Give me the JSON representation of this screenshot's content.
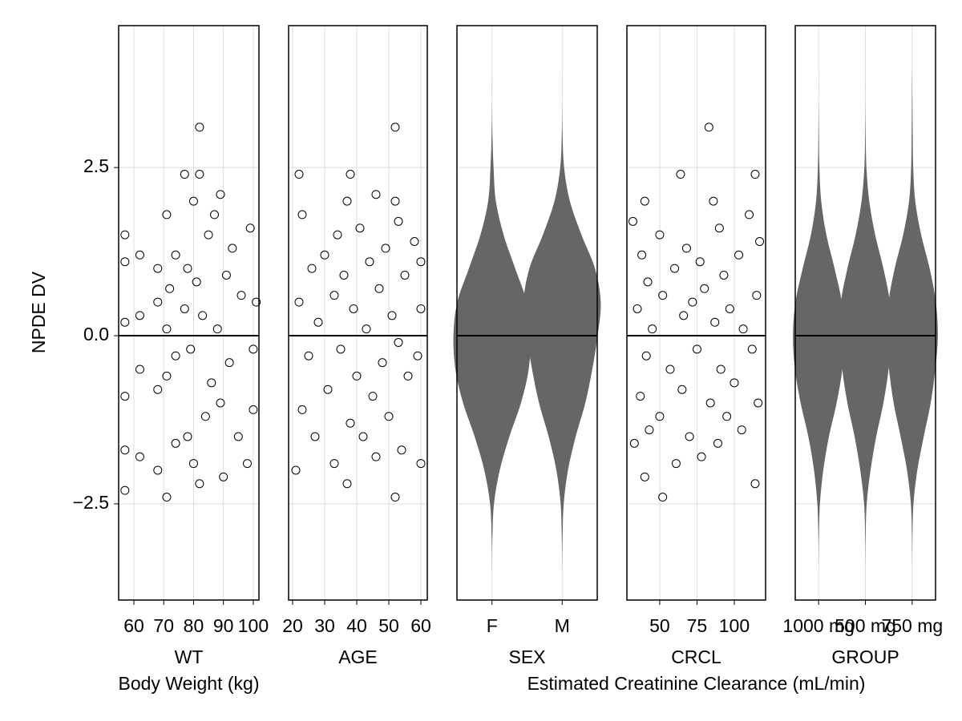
{
  "chart_data": [
    {
      "type": "scatter",
      "xlabel": "WT",
      "xsublabel": "Body Weight (kg)",
      "ylabel": "NPDE DV",
      "xlim": [
        54.9,
        101.9
      ],
      "xticks": [
        60,
        70,
        80,
        90,
        100
      ],
      "ylim": [
        -3.93,
        4.61
      ],
      "yticks": [
        {
          "value": -2.5,
          "label": "−2.5"
        },
        {
          "value": 0,
          "label": "0.0"
        },
        2.5
      ],
      "hline": 0,
      "grid": true,
      "color": "#000000",
      "x": [
        57,
        57,
        57,
        57,
        57,
        57,
        62,
        62,
        62,
        62,
        68,
        68,
        68,
        68,
        71,
        71,
        71,
        71,
        72,
        74,
        74,
        74,
        77,
        77,
        78,
        78,
        79,
        80,
        80,
        81,
        82,
        82,
        82,
        83,
        84,
        85,
        86,
        87,
        88,
        89,
        89,
        90,
        91,
        92,
        93,
        95,
        96,
        98,
        99,
        100,
        101,
        100
      ],
      "values": [
        1.5,
        -2.3,
        0.2,
        -0.9,
        1.1,
        -1.7,
        1.2,
        -0.5,
        0.3,
        -1.8,
        0.5,
        -0.8,
        -2.0,
        1.0,
        -2.4,
        1.8,
        0.1,
        -0.6,
        0.7,
        -1.6,
        1.2,
        -0.3,
        2.4,
        0.4,
        -1.5,
        1.0,
        -0.2,
        2.0,
        -1.9,
        0.8,
        3.1,
        -2.2,
        2.4,
        0.3,
        -1.2,
        1.5,
        -0.7,
        1.8,
        0.1,
        2.1,
        -1.0,
        -2.1,
        0.9,
        -0.4,
        1.3,
        -1.5,
        0.6,
        -1.9,
        1.6,
        -0.2,
        0.5,
        -1.1
      ]
    },
    {
      "type": "scatter",
      "xlabel": "AGE",
      "xlim": [
        18.75,
        62
      ],
      "xticks": [
        20,
        30,
        40,
        50,
        60
      ],
      "ylim": [
        -3.93,
        4.61
      ],
      "hline": 0,
      "grid": true,
      "color": "#000000",
      "x": [
        21,
        22,
        22,
        23,
        23,
        25,
        26,
        27,
        28,
        30,
        31,
        33,
        33,
        34,
        35,
        36,
        37,
        37,
        38,
        38,
        39,
        40,
        41,
        42,
        43,
        44,
        45,
        46,
        46,
        47,
        48,
        49,
        50,
        51,
        52,
        52,
        52,
        53,
        53,
        54,
        55,
        56,
        58,
        60,
        60,
        60,
        59
      ],
      "values": [
        -2.0,
        2.4,
        0.5,
        -1.1,
        1.8,
        -0.3,
        1.0,
        -1.5,
        0.2,
        1.2,
        -0.8,
        0.6,
        -1.9,
        1.5,
        -0.2,
        0.9,
        -2.2,
        2.0,
        2.4,
        -1.3,
        0.4,
        -0.6,
        1.6,
        -1.5,
        0.1,
        1.1,
        -0.9,
        2.1,
        -1.8,
        0.7,
        -0.4,
        1.3,
        -1.2,
        0.3,
        3.1,
        -2.4,
        2.0,
        -0.1,
        1.7,
        -1.7,
        0.9,
        -0.6,
        1.4,
        -1.9,
        0.4,
        1.1,
        -0.3
      ]
    },
    {
      "type": "violin",
      "xlabel": "SEX",
      "categories": [
        "F",
        "M"
      ],
      "ylim": [
        -3.93,
        4.61
      ],
      "hline": 0,
      "grid": true,
      "color": "#666666",
      "density_y": [
        -3.5,
        -3,
        -2.5,
        -2,
        -1.5,
        -1,
        -0.5,
        0,
        0.5,
        1,
        1.5,
        2,
        2.5,
        3,
        3.5,
        4
      ],
      "densities": [
        [
          0,
          0.01,
          0.05,
          0.2,
          0.45,
          0.75,
          0.95,
          1,
          0.9,
          0.6,
          0.3,
          0.1,
          0.04,
          0.01,
          0,
          0
        ],
        [
          0,
          0.01,
          0.04,
          0.15,
          0.35,
          0.6,
          0.78,
          0.92,
          1,
          0.85,
          0.5,
          0.2,
          0.05,
          0.01,
          0,
          0
        ]
      ]
    },
    {
      "type": "scatter",
      "xlabel": "CRCL",
      "xsublabel": "Estimated Creatinine Clearance (mL/min)",
      "xlim": [
        28,
        121
      ],
      "xticks": [
        50,
        75,
        100
      ],
      "ylim": [
        -3.93,
        4.61
      ],
      "hline": 0,
      "grid": true,
      "color": "#000000",
      "x": [
        32,
        33,
        35,
        37,
        38,
        40,
        40,
        41,
        42,
        43,
        45,
        50,
        50,
        52,
        52,
        57,
        60,
        61,
        64,
        65,
        66,
        68,
        70,
        72,
        75,
        77,
        78,
        80,
        83,
        84,
        86,
        87,
        89,
        90,
        91,
        93,
        95,
        97,
        100,
        103,
        105,
        106,
        110,
        112,
        114,
        114,
        115,
        116,
        117
      ],
      "values": [
        1.7,
        -1.6,
        0.4,
        -0.9,
        1.2,
        -2.1,
        2.0,
        -0.3,
        0.8,
        -1.4,
        0.1,
        1.5,
        -1.2,
        -2.4,
        0.6,
        -0.5,
        1.0,
        -1.9,
        2.4,
        -0.8,
        0.3,
        1.3,
        -1.5,
        0.5,
        -0.2,
        1.1,
        -1.8,
        0.7,
        3.1,
        -1.0,
        2.0,
        0.2,
        -1.6,
        1.6,
        -0.5,
        0.9,
        -1.2,
        0.4,
        -0.7,
        1.2,
        -1.4,
        0.1,
        1.8,
        -0.2,
        2.4,
        -2.2,
        0.6,
        -1.0,
        1.4
      ]
    },
    {
      "type": "violin",
      "xlabel": "GROUP",
      "categories": [
        "1000 mg",
        "500 mg",
        "750 mg"
      ],
      "ylim": [
        -3.93,
        4.61
      ],
      "hline": 0,
      "grid": true,
      "color": "#666666",
      "density_y": [
        -3.5,
        -3,
        -2.5,
        -2,
        -1.5,
        -1,
        -0.5,
        0,
        0.5,
        1,
        1.5,
        2,
        2.5,
        3,
        3.5,
        4
      ],
      "densities": [
        [
          0,
          0.01,
          0.05,
          0.18,
          0.4,
          0.7,
          0.92,
          1,
          0.9,
          0.62,
          0.3,
          0.1,
          0.03,
          0.01,
          0,
          0
        ],
        [
          0,
          0.01,
          0.05,
          0.2,
          0.42,
          0.7,
          0.9,
          1,
          0.95,
          0.7,
          0.38,
          0.15,
          0.04,
          0.01,
          0,
          0
        ],
        [
          0,
          0.01,
          0.05,
          0.2,
          0.45,
          0.72,
          0.9,
          1,
          0.92,
          0.68,
          0.35,
          0.12,
          0.04,
          0.02,
          0.01,
          0
        ]
      ]
    }
  ]
}
